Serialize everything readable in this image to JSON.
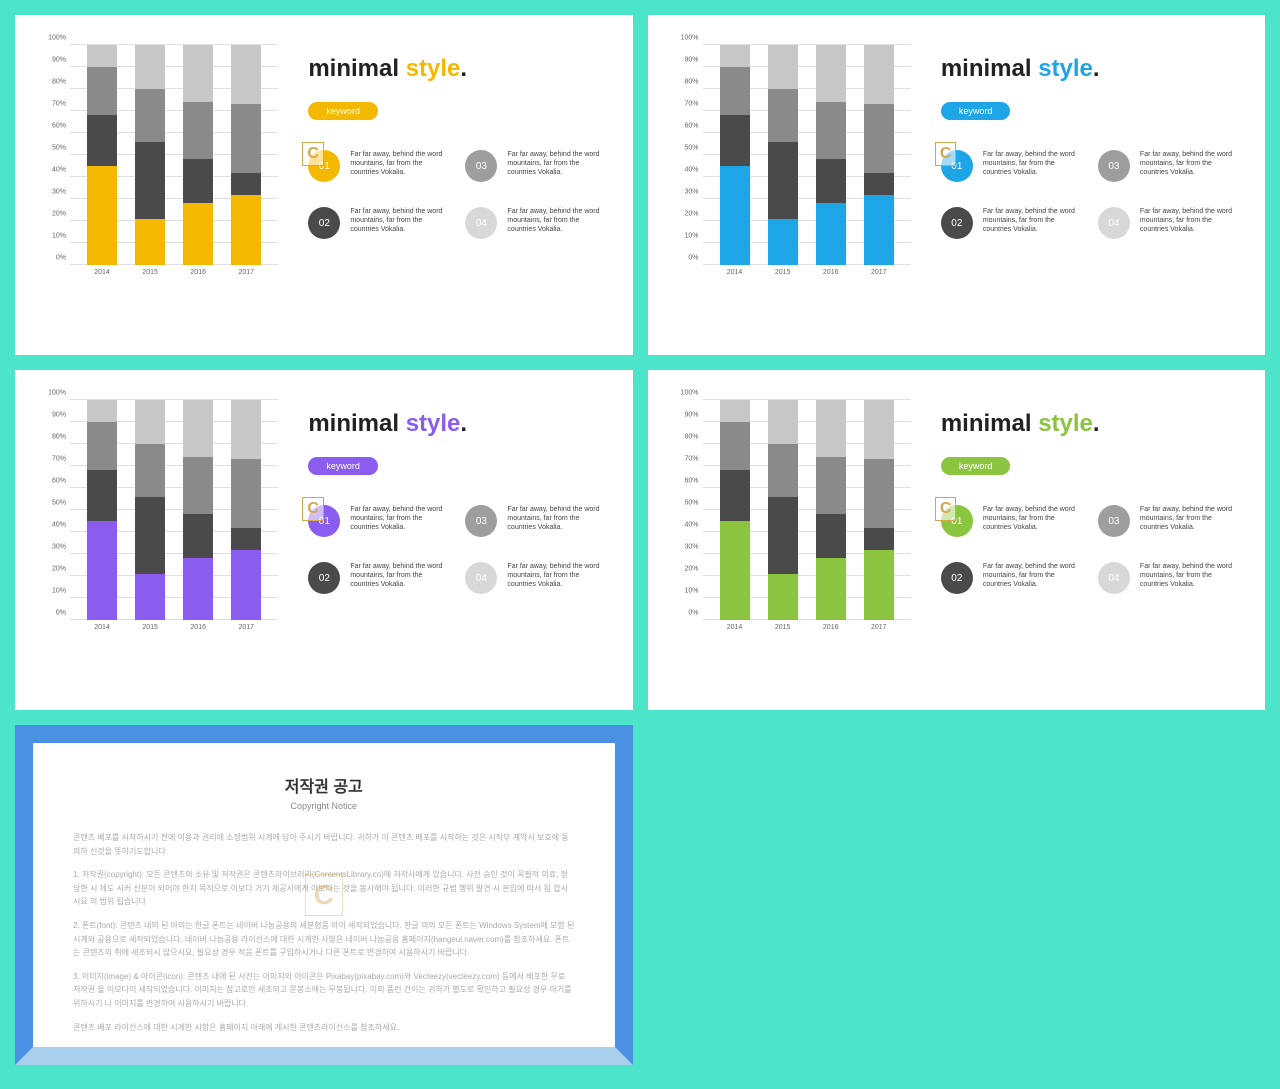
{
  "accents": {
    "yellow": "#f5b800",
    "blue": "#1ea5e8",
    "purple": "#8a5cf0",
    "green": "#8bc540"
  },
  "grays": {
    "seg2": "#4a4a4a",
    "seg3": "#8a8a8a",
    "seg4": "#c8c8c8",
    "circle3": "#9e9e9e",
    "circle4": "#d8d8d8"
  },
  "chart": {
    "categories": [
      "2014",
      "2015",
      "2016",
      "2017"
    ],
    "yticks": [
      "0%",
      "10%",
      "20%",
      "30%",
      "40%",
      "50%",
      "60%",
      "70%",
      "80%",
      "90%",
      "100%"
    ],
    "stacks": [
      [
        45,
        23,
        22,
        10
      ],
      [
        21,
        35,
        24,
        20
      ],
      [
        28,
        20,
        26,
        26
      ],
      [
        32,
        10,
        31,
        27
      ]
    ]
  },
  "title_a": "minimal ",
  "title_b": "style",
  "title_dot": ".",
  "keyword": "keyword",
  "info_text": "Far far away, behind the word mountains, far from the countries Vokalia.",
  "nums": [
    "01",
    "02",
    "03",
    "04"
  ],
  "notice": {
    "title": "저작권 공고",
    "sub": "Copyright Notice",
    "paras": [
      "콘텐츠 배포를 시작하시기 전에 이용과 권리에 소정범위 시계에 담아 주시기 바랍니다. 귀하가 이 콘텐츠 배포를 시작하는 것은 시작부 계약서 보호에 동의하 신것을 뜻하기도합니다.",
      "1. 저작권(copyright): 모든 콘텐츠의 소유 및 저작권은 콘텐츠라이브러리(ContentsLibrary.co)에 저작사에게 있습니다. 사전 승인 것이 꼭필적 의료, 정당한 시 제도 시커 신분이 되어야 한치 목적으로 이보다 거기 제공사에게 이보다는 것을 봉사해야 됩니다. 이러한 규범 행위 발견 시 본입에 따서 됨 합시시요 의 범위 됩습니다",
      "2. 폰트(font): 콘텐츠 내의 된 아의는 한글 폰트는 네이버 나눔공용의 세분형품 아이 세작되었습니다. 한글 의의 모든 폰트는 Windows System에 모함 된 시계와 공용으로 세작되었습니다. 네이버 나눔공용 라이선스에 대한 시계한 사항은 네이버 나눔공용 홈페이지(hangeul.naver.com)를 참조하세요. 폰트는 콘텐츠의 취에 세조되시 않으시요, 필요성 경우 적음 폰트를 구입하시거나 다른 폰트로 변경하여 시용하시기 바랍니다.",
      "3. 이미지(image) & 아이콘(icon): 콘텐츠 내에 된 사진는 이미지와 아이콘은 Pixabay(pixabay.com)와 Vecteezy(vecteezy.com) 등에서 배포한 무료 저작권 을 이모다이 세작되었습니다. 이미지는 참고로만 세조되고 문봉소에는 무봉됩니다. 이외 품런 건이는 귀하가 별도로 확인하고 필요성 경우 아거를 위하시기 나 이미지를 변경하여 시용하시기 바랍니다.",
      "콘텐츠 배포 라이선스에 대한 시계한 시항은 홈페이지 아래에 게시한 콘텐츠라이선스를 참조하세요."
    ]
  }
}
